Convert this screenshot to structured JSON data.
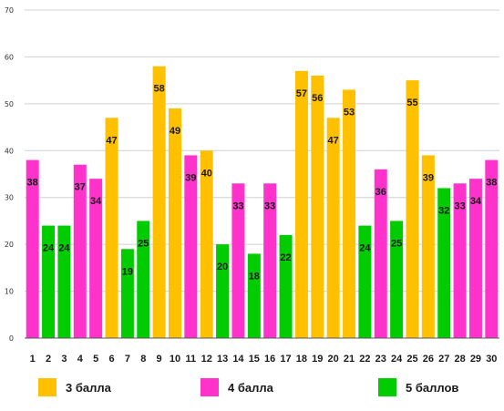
{
  "chart_data": {
    "type": "bar",
    "title": "",
    "xlabel": "",
    "ylabel": "",
    "ylim": [
      0,
      70
    ],
    "y_ticks": [
      "0",
      "10",
      "20",
      "30",
      "40",
      "50",
      "60",
      "70"
    ],
    "grid": true,
    "legend_position": "bottom",
    "categories": [
      "1",
      "2",
      "3",
      "4",
      "5",
      "6",
      "7",
      "8",
      "9",
      "10",
      "11",
      "12",
      "13",
      "14",
      "15",
      "16",
      "17",
      "18",
      "19",
      "20",
      "21",
      "22",
      "23",
      "24",
      "25",
      "26",
      "27",
      "28",
      "29",
      "30"
    ],
    "values": [
      38,
      24,
      24,
      37,
      34,
      47,
      19,
      25,
      58,
      49,
      39,
      40,
      20,
      33,
      18,
      33,
      22,
      57,
      56,
      47,
      53,
      24,
      36,
      25,
      55,
      39,
      32,
      33,
      34,
      38
    ],
    "value_labels": [
      "38",
      "24",
      "24",
      "37",
      "34",
      "47",
      "19",
      "25",
      "58",
      "49",
      "39",
      "40",
      "20",
      "33",
      "18",
      "33",
      "22",
      "57",
      "56",
      "47",
      "53",
      "24",
      "36",
      "25",
      "55",
      "39",
      "32",
      "33",
      "34",
      "38"
    ],
    "bar_series": [
      1,
      2,
      2,
      1,
      1,
      0,
      2,
      2,
      0,
      0,
      1,
      0,
      2,
      1,
      2,
      1,
      2,
      0,
      0,
      0,
      0,
      2,
      1,
      2,
      0,
      0,
      2,
      1,
      1,
      1
    ],
    "series": [
      {
        "name": "3 балла",
        "color": "#FFC000"
      },
      {
        "name": "4 балла",
        "color": "#FF33CC"
      },
      {
        "name": "5 баллов",
        "color": "#00CC00"
      }
    ]
  }
}
